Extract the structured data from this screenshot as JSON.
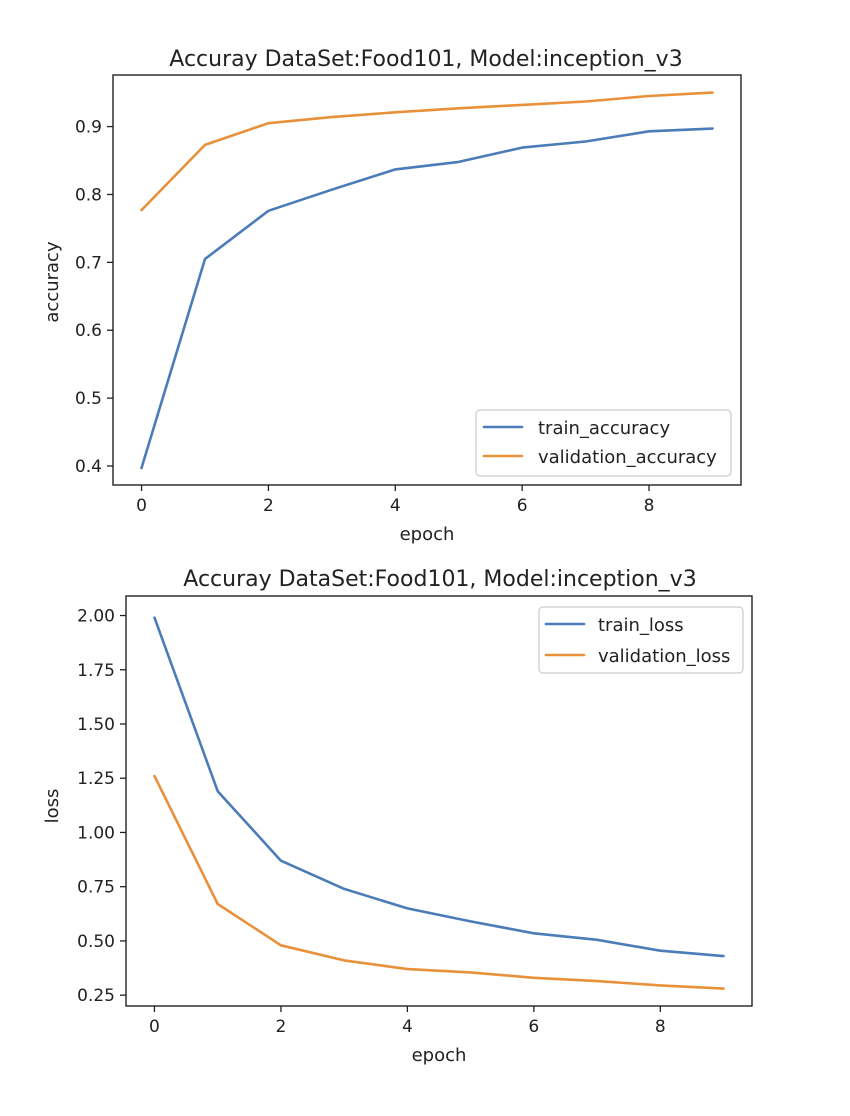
{
  "chart_data": [
    {
      "type": "line",
      "title": "Accuray DataSet:Food101, Model:inception_v3",
      "xlabel": "epoch",
      "ylabel": "accuracy",
      "x": [
        0,
        1,
        2,
        3,
        4,
        5,
        6,
        7,
        8,
        9
      ],
      "xticks": [
        "0",
        "2",
        "4",
        "6",
        "8"
      ],
      "yticks": [
        "0.4",
        "0.5",
        "0.6",
        "0.7",
        "0.8",
        "0.9"
      ],
      "legend_position": "lower-right",
      "series": [
        {
          "name": "train_accuracy",
          "color": "#4c7cb8",
          "values": [
            0.397,
            0.705,
            0.776,
            0.807,
            0.837,
            0.848,
            0.869,
            0.878,
            0.893,
            0.897
          ]
        },
        {
          "name": "validation_accuracy",
          "color": "#e8913a",
          "values": [
            0.777,
            0.873,
            0.905,
            0.914,
            0.921,
            0.927,
            0.932,
            0.937,
            0.945,
            0.95
          ]
        }
      ]
    },
    {
      "type": "line",
      "title": "Accuray DataSet:Food101, Model:inception_v3",
      "xlabel": "epoch",
      "ylabel": "loss",
      "x": [
        0,
        1,
        2,
        3,
        4,
        5,
        6,
        7,
        8,
        9
      ],
      "xticks": [
        "0",
        "2",
        "4",
        "6",
        "8"
      ],
      "yticks": [
        "0.25",
        "0.50",
        "0.75",
        "1.00",
        "1.25",
        "1.50",
        "1.75",
        "2.00"
      ],
      "legend_position": "upper-right",
      "series": [
        {
          "name": "train_loss",
          "color": "#4c7cb8",
          "values": [
            1.99,
            1.19,
            0.87,
            0.74,
            0.65,
            0.59,
            0.535,
            0.505,
            0.455,
            0.43
          ]
        },
        {
          "name": "validation_loss",
          "color": "#e8913a",
          "values": [
            1.26,
            0.67,
            0.48,
            0.41,
            0.37,
            0.355,
            0.33,
            0.315,
            0.295,
            0.28
          ]
        }
      ]
    }
  ]
}
